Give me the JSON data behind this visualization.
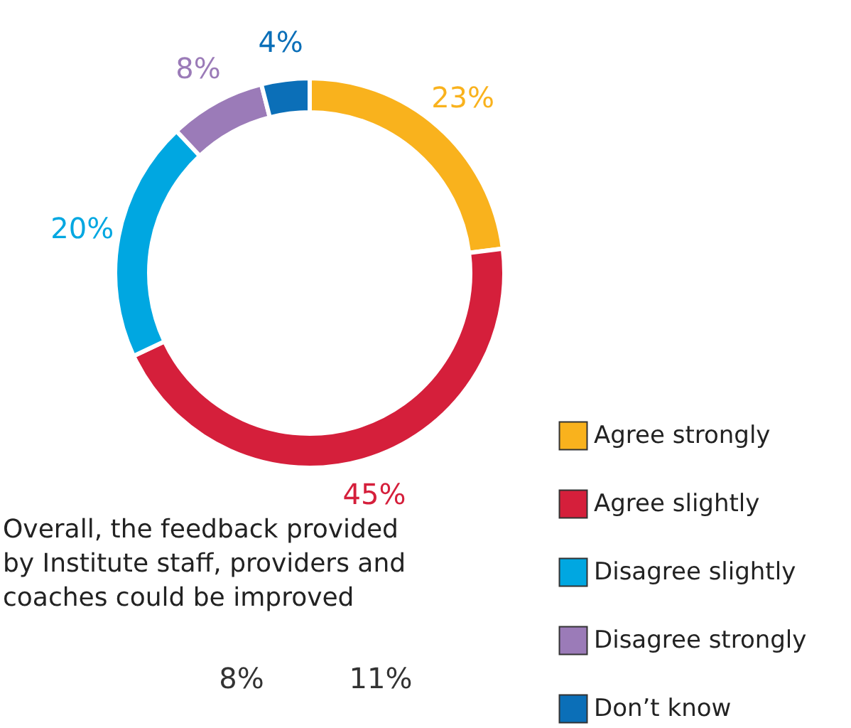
{
  "chart_data": [
    {
      "type": "donut",
      "categories": [
        "Agree strongly",
        "Agree slightly",
        "Disagree slightly",
        "Disagree strongly",
        "Don’t know"
      ],
      "values": [
        23,
        45,
        20,
        8,
        4
      ],
      "value_labels": [
        "23%",
        "45%",
        "20%",
        "8%",
        "4%"
      ],
      "colors": [
        "#f9b21d",
        "#d51f3b",
        "#00a7e1",
        "#9b7bb8",
        "#0b6fb8"
      ],
      "legend": "bottom right"
    },
    {
      "type": "other",
      "title": "Overall, the feedback provided\nby Institute staff, providers and\ncoaches could be improved",
      "annotations": [
        "8%",
        "11%"
      ]
    }
  ]
}
